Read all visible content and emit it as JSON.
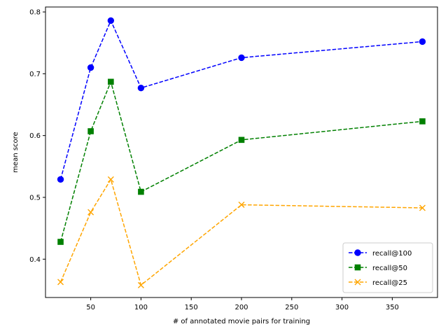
{
  "chart_data": {
    "type": "line",
    "title": "",
    "xlabel": "# of annotated movie pairs for training",
    "ylabel": "mean score",
    "xlim": [
      5,
      395
    ],
    "ylim": [
      0.338,
      0.808
    ],
    "xticks": [
      50,
      100,
      150,
      200,
      250,
      300,
      350
    ],
    "yticks": [
      0.4,
      0.5,
      0.6,
      0.7,
      0.8
    ],
    "grid": false,
    "legend_position": "lower-right",
    "x": [
      20,
      50,
      70,
      100,
      200,
      380
    ],
    "series": [
      {
        "name": "recall@100",
        "values": [
          0.529,
          0.71,
          0.786,
          0.677,
          0.726,
          0.752
        ],
        "color": "#0000ff",
        "marker": "circle",
        "linestyle": "dashed"
      },
      {
        "name": "recall@50",
        "values": [
          0.428,
          0.607,
          0.687,
          0.509,
          0.593,
          0.623
        ],
        "color": "#008000",
        "marker": "square",
        "linestyle": "dashed"
      },
      {
        "name": "recall@25",
        "values": [
          0.363,
          0.476,
          0.529,
          0.358,
          0.488,
          0.483
        ],
        "color": "#ffa500",
        "marker": "x",
        "linestyle": "dashed"
      }
    ]
  }
}
